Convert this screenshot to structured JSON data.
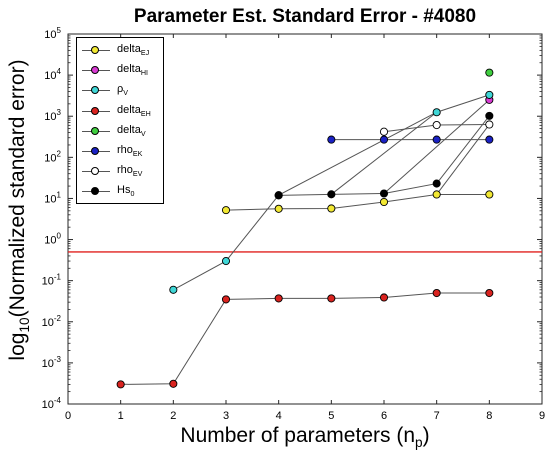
{
  "chart_data": {
    "type": "line",
    "title": "Parameter Est. Standard Error - #4080",
    "xlabel": "Number of parameters (n",
    "xlabel_sub": "p",
    "xlabel_suffix": ")",
    "ylabel": "log",
    "ylabel_sub": "10",
    "ylabel_suffix": "(Normalized standard error)",
    "xlim": [
      0,
      9
    ],
    "ylim": [
      0.0001,
      100000
    ],
    "yscale": "log",
    "xticks": [
      "0",
      "1",
      "2",
      "3",
      "4",
      "5",
      "6",
      "7",
      "8",
      "9"
    ],
    "yticks": [
      {
        "base": "10",
        "exp": "-4",
        "value": 0.0001
      },
      {
        "base": "10",
        "exp": "-3",
        "value": 0.001
      },
      {
        "base": "10",
        "exp": "-2",
        "value": 0.01
      },
      {
        "base": "10",
        "exp": "-1",
        "value": 0.1
      },
      {
        "base": "10",
        "exp": "0",
        "value": 1
      },
      {
        "base": "10",
        "exp": "1",
        "value": 10
      },
      {
        "base": "10",
        "exp": "2",
        "value": 100
      },
      {
        "base": "10",
        "exp": "3",
        "value": 1000
      },
      {
        "base": "10",
        "exp": "4",
        "value": 10000
      },
      {
        "base": "10",
        "exp": "5",
        "value": 100000
      }
    ],
    "grid": false,
    "legend_position": "top-left",
    "threshold": {
      "value": 0.5,
      "color": "#e0201f"
    },
    "line_color": "#555555",
    "series": [
      {
        "name": "delta",
        "sub": "EJ",
        "color": "#f2e833",
        "x": [
          3,
          4,
          5,
          6,
          7,
          8
        ],
        "y": [
          5.2,
          5.6,
          5.7,
          8.2,
          12.5,
          12.5
        ]
      },
      {
        "name": "delta",
        "sub": "HI",
        "color": "#d83ad2",
        "x": [
          8
        ],
        "y": [
          2500
        ]
      },
      {
        "name": "ρ",
        "sub": "V",
        "color": "#3fd6d6",
        "x": [
          2,
          3,
          4,
          7,
          8
        ],
        "y": [
          0.06,
          0.3,
          12,
          1250,
          3300
        ]
      },
      {
        "name": "delta",
        "sub": "EH",
        "color": "#d9231f",
        "x": [
          1,
          2,
          3,
          4,
          5,
          6,
          7,
          8
        ],
        "y": [
          0.0003,
          0.00031,
          0.035,
          0.037,
          0.037,
          0.039,
          0.05,
          0.05
        ]
      },
      {
        "name": "delta",
        "sub": "V",
        "color": "#3fce3f",
        "x": [
          8
        ],
        "y": [
          11500
        ]
      },
      {
        "name": "rho",
        "sub": "EK",
        "color": "#1a21c4",
        "x": [
          5,
          6,
          7,
          8
        ],
        "y": [
          270,
          270,
          270,
          270
        ]
      },
      {
        "name": "rho",
        "sub": "EV",
        "color": "#ffffff",
        "x": [
          6,
          7,
          8
        ],
        "y": [
          420,
          610,
          630
        ]
      },
      {
        "name": "Hs",
        "sub": "0",
        "color": "#000000",
        "x": [
          4,
          5,
          6,
          7,
          8
        ],
        "y": [
          11.9,
          12.6,
          13.2,
          23,
          1020
        ]
      }
    ],
    "extra_segments": [
      {
        "color": "#555555",
        "from": [
          5,
          12.6
        ],
        "to": [
          7,
          1250
        ]
      },
      {
        "color": "#555555",
        "from": [
          6,
          13.2
        ],
        "to": [
          8,
          2500
        ]
      },
      {
        "color": "#555555",
        "from": [
          7,
          12.5
        ],
        "to": [
          8,
          630
        ]
      }
    ]
  }
}
